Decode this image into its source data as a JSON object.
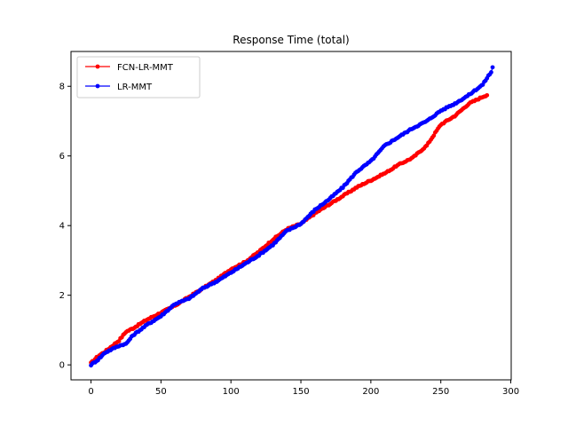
{
  "chart_data": {
    "type": "line",
    "title": "Response Time (total)",
    "xlabel": "",
    "ylabel": "",
    "xlim": [
      -14.3,
      300.3
    ],
    "ylim": [
      -0.43,
      9.0
    ],
    "xticks": [
      0,
      50,
      100,
      150,
      200,
      250,
      300
    ],
    "yticks": [
      0,
      2,
      4,
      6,
      8
    ],
    "grid": false,
    "legend_position": "top-left",
    "series": [
      {
        "name": "FCN-LR-MMT",
        "color": "#ff0000",
        "marker": "dot",
        "n_points": 283,
        "anchors": [
          [
            0,
            0.05
          ],
          [
            5,
            0.25
          ],
          [
            10,
            0.38
          ],
          [
            20,
            0.7
          ],
          [
            25,
            0.95
          ],
          [
            30,
            1.05
          ],
          [
            40,
            1.3
          ],
          [
            50,
            1.5
          ],
          [
            60,
            1.7
          ],
          [
            70,
            1.95
          ],
          [
            80,
            2.2
          ],
          [
            90,
            2.45
          ],
          [
            100,
            2.75
          ],
          [
            110,
            2.95
          ],
          [
            120,
            3.25
          ],
          [
            130,
            3.6
          ],
          [
            140,
            3.9
          ],
          [
            150,
            4.05
          ],
          [
            160,
            4.35
          ],
          [
            170,
            4.6
          ],
          [
            180,
            4.85
          ],
          [
            190,
            5.1
          ],
          [
            200,
            5.3
          ],
          [
            210,
            5.5
          ],
          [
            220,
            5.75
          ],
          [
            230,
            5.95
          ],
          [
            240,
            6.3
          ],
          [
            250,
            6.9
          ],
          [
            260,
            7.15
          ],
          [
            270,
            7.5
          ],
          [
            280,
            7.7
          ],
          [
            283,
            7.75
          ]
        ]
      },
      {
        "name": "LR-MMT",
        "color": "#0000ff",
        "marker": "dot",
        "n_points": 287,
        "anchors": [
          [
            0,
            0.0
          ],
          [
            5,
            0.15
          ],
          [
            10,
            0.35
          ],
          [
            20,
            0.55
          ],
          [
            25,
            0.6
          ],
          [
            30,
            0.85
          ],
          [
            40,
            1.15
          ],
          [
            50,
            1.4
          ],
          [
            60,
            1.75
          ],
          [
            70,
            1.9
          ],
          [
            80,
            2.2
          ],
          [
            90,
            2.4
          ],
          [
            100,
            2.65
          ],
          [
            110,
            2.9
          ],
          [
            120,
            3.15
          ],
          [
            130,
            3.45
          ],
          [
            140,
            3.85
          ],
          [
            150,
            4.05
          ],
          [
            160,
            4.45
          ],
          [
            170,
            4.75
          ],
          [
            180,
            5.1
          ],
          [
            190,
            5.55
          ],
          [
            200,
            5.85
          ],
          [
            210,
            6.3
          ],
          [
            220,
            6.55
          ],
          [
            230,
            6.8
          ],
          [
            240,
            7.0
          ],
          [
            250,
            7.3
          ],
          [
            260,
            7.5
          ],
          [
            270,
            7.75
          ],
          [
            280,
            8.05
          ],
          [
            284,
            8.3
          ],
          [
            286,
            8.4
          ],
          [
            287,
            8.55
          ]
        ]
      }
    ]
  }
}
